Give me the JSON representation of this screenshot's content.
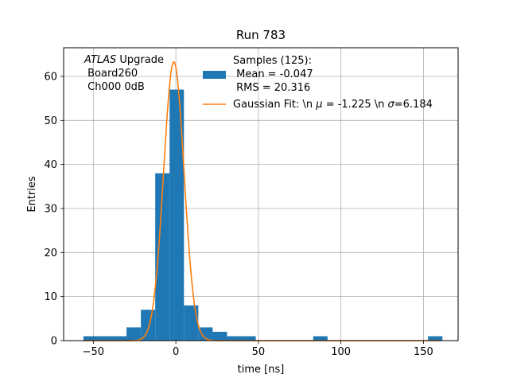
{
  "chart_data": {
    "type": "bar",
    "title": "Run 783",
    "xlabel": "time [ns]",
    "ylabel": "Entries",
    "xlim": [
      -68,
      171
    ],
    "ylim": [
      0,
      66.5
    ],
    "xticks": [
      -50,
      0,
      50,
      100,
      150
    ],
    "xtick_labels": [
      "−50",
      "0",
      "50",
      "100",
      "150"
    ],
    "yticks": [
      0,
      10,
      20,
      30,
      40,
      50,
      60
    ],
    "ytick_labels": [
      "0",
      "10",
      "20",
      "30",
      "40",
      "50",
      "60"
    ],
    "grid": true,
    "legend_position": "top-right",
    "annotation": {
      "italic": "ATLAS",
      "rest": " Upgrade",
      "line2": " Board260",
      "line3": " Ch000 0dB"
    },
    "histogram": {
      "name": "Samples (125):",
      "stats_line1": " Mean = -0.047",
      "stats_line2": " RMS = 20.316",
      "color": "#1f77b4",
      "bins": [
        {
          "x0": -56.0,
          "x1": -47.3,
          "value": 1
        },
        {
          "x0": -47.3,
          "x1": -38.6,
          "value": 1
        },
        {
          "x0": -38.6,
          "x1": -29.9,
          "value": 1
        },
        {
          "x0": -29.9,
          "x1": -21.2,
          "value": 3
        },
        {
          "x0": -21.2,
          "x1": -12.5,
          "value": 7
        },
        {
          "x0": -12.5,
          "x1": -3.8,
          "value": 38
        },
        {
          "x0": -3.8,
          "x1": 4.9,
          "value": 57
        },
        {
          "x0": 4.9,
          "x1": 13.6,
          "value": 8
        },
        {
          "x0": 13.6,
          "x1": 22.3,
          "value": 3
        },
        {
          "x0": 22.3,
          "x1": 31.0,
          "value": 2
        },
        {
          "x0": 31.0,
          "x1": 39.7,
          "value": 1
        },
        {
          "x0": 39.7,
          "x1": 48.4,
          "value": 1
        },
        {
          "x0": 48.4,
          "x1": 57.1,
          "value": 0
        },
        {
          "x0": 57.1,
          "x1": 65.8,
          "value": 0
        },
        {
          "x0": 65.8,
          "x1": 74.5,
          "value": 0
        },
        {
          "x0": 74.5,
          "x1": 83.2,
          "value": 0
        },
        {
          "x0": 83.2,
          "x1": 91.9,
          "value": 1
        },
        {
          "x0": 91.9,
          "x1": 100.6,
          "value": 0
        },
        {
          "x0": 100.6,
          "x1": 109.3,
          "value": 0
        },
        {
          "x0": 109.3,
          "x1": 118.0,
          "value": 0
        },
        {
          "x0": 118.0,
          "x1": 126.7,
          "value": 0
        },
        {
          "x0": 126.7,
          "x1": 135.4,
          "value": 0
        },
        {
          "x0": 135.4,
          "x1": 144.1,
          "value": 0
        },
        {
          "x0": 144.1,
          "x1": 152.8,
          "value": 0
        },
        {
          "x0": 152.8,
          "x1": 161.5,
          "value": 1
        }
      ]
    },
    "fit": {
      "label_prefix": "Gaussian Fit: \\n ",
      "mu_symbol": "μ",
      "mu_text": " = -1.225 \\n ",
      "sigma_symbol": "σ",
      "sigma_text": "=6.184",
      "mu": -1.225,
      "sigma": 6.184,
      "amplitude": 63.3,
      "range": [
        -56,
        160
      ],
      "color": "#ff7f0e"
    }
  }
}
